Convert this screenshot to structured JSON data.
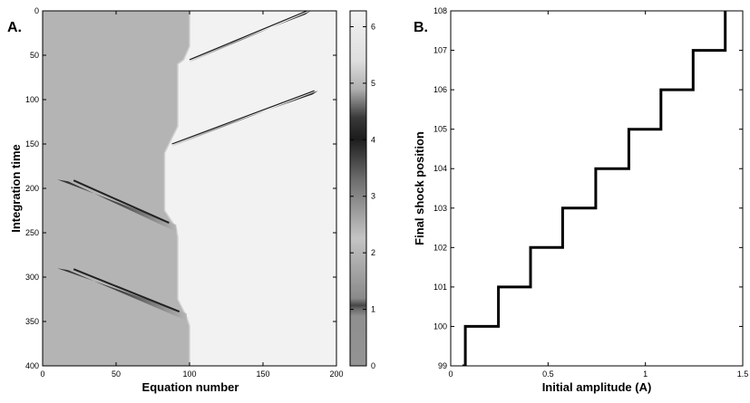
{
  "chart_data": [
    {
      "type": "heatmap",
      "panel_label": "A.",
      "xlabel": "Equation number",
      "ylabel": "Integration time",
      "xlim": [
        0,
        200
      ],
      "ylim": [
        0,
        400
      ],
      "y_inverted": true,
      "x_ticks": [
        "0",
        "50",
        "100",
        "150",
        "200"
      ],
      "y_ticks": [
        "0",
        "50",
        "100",
        "150",
        "200",
        "250",
        "300",
        "350",
        "400"
      ],
      "colorbar": {
        "range": [
          0,
          6.28
        ],
        "ticks": [
          "0",
          "1",
          "2",
          "3",
          "4",
          "5",
          "6"
        ],
        "colormap": "gray"
      },
      "background_values": {
        "left_region": 1.3,
        "right_region": 6.2
      },
      "shock_front": [
        {
          "t": 0,
          "x": 100
        },
        {
          "t": 40,
          "x": 100
        },
        {
          "t": 55,
          "x": 96
        },
        {
          "t": 60,
          "x": 92
        },
        {
          "t": 130,
          "x": 92
        },
        {
          "t": 150,
          "x": 86
        },
        {
          "t": 160,
          "x": 83
        },
        {
          "t": 225,
          "x": 83
        },
        {
          "t": 245,
          "x": 91
        },
        {
          "t": 255,
          "x": 92
        },
        {
          "t": 325,
          "x": 92
        },
        {
          "t": 345,
          "x": 98
        },
        {
          "t": 355,
          "x": 100
        },
        {
          "t": 400,
          "x": 100
        }
      ],
      "streaks_right": [
        {
          "start_t": 0,
          "start_x": 180,
          "end_t": 55,
          "end_x": 100
        },
        {
          "start_t": 90,
          "start_x": 185,
          "end_t": 150,
          "end_x": 88
        }
      ],
      "streaks_left": [
        {
          "start_t": 190,
          "start_x": 10,
          "end_t": 245,
          "end_x": 91
        },
        {
          "start_t": 290,
          "start_x": 10,
          "end_t": 345,
          "end_x": 98
        }
      ]
    },
    {
      "type": "line",
      "panel_label": "B.",
      "xlabel": "Initial amplitude (A)",
      "ylabel": "Final shock position",
      "xlim": [
        0,
        1.5
      ],
      "ylim": [
        99,
        108
      ],
      "x_ticks": [
        "0",
        "0.5",
        "1",
        "1.5"
      ],
      "y_ticks": [
        "99",
        "100",
        "101",
        "102",
        "103",
        "104",
        "105",
        "106",
        "107",
        "108"
      ],
      "series": [
        {
          "style": "step",
          "color": "#000000",
          "x": [
            0.06,
            0.075,
            0.075,
            0.245,
            0.245,
            0.41,
            0.41,
            0.575,
            0.575,
            0.745,
            0.745,
            0.915,
            0.915,
            1.08,
            1.08,
            1.245,
            1.245,
            1.41,
            1.41
          ],
          "y": [
            99,
            99,
            100,
            100,
            101,
            101,
            102,
            102,
            103,
            103,
            104,
            104,
            105,
            105,
            106,
            106,
            107,
            107,
            108
          ]
        }
      ]
    }
  ]
}
